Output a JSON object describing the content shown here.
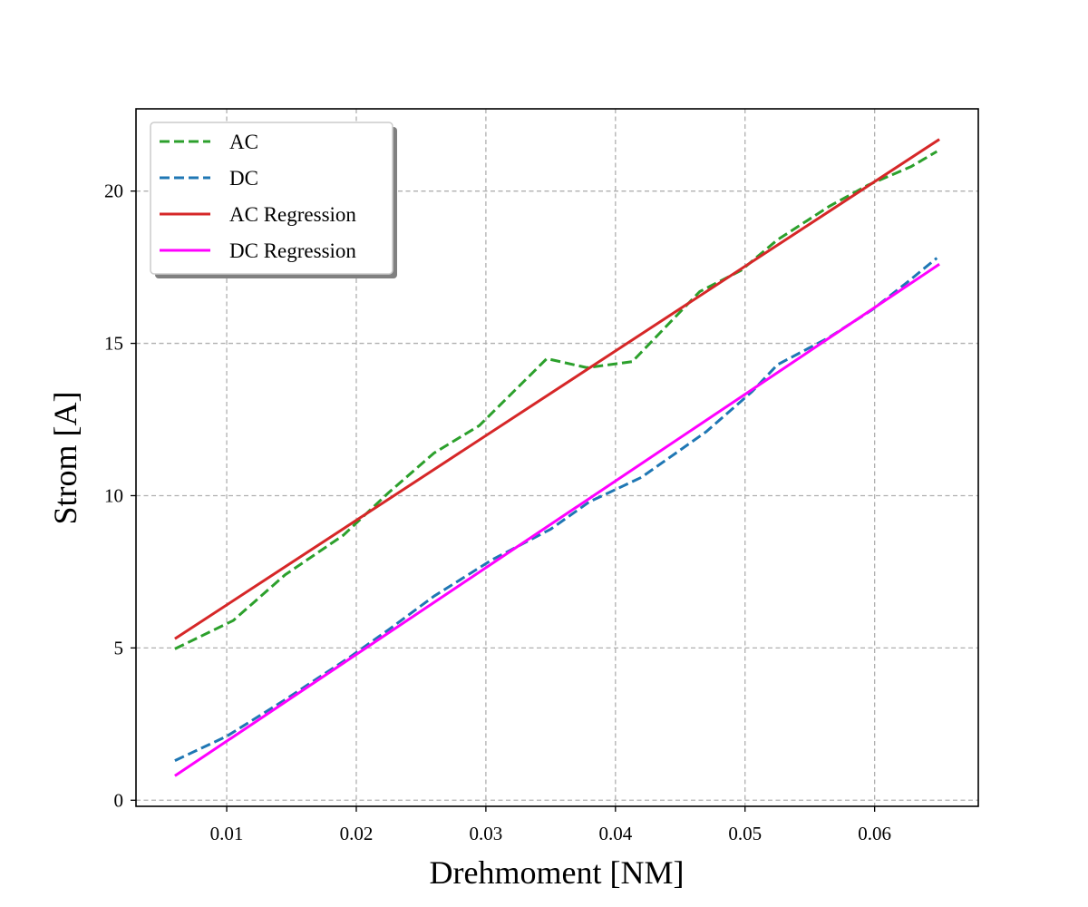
{
  "chart_data": {
    "type": "line",
    "title": "",
    "xlabel": "Drehmoment [NM]",
    "ylabel": "Strom [A]",
    "xlim": [
      0.003,
      0.068
    ],
    "ylim": [
      -0.2,
      22.7
    ],
    "xticks": [
      0.01,
      0.02,
      0.03,
      0.04,
      0.05,
      0.06
    ],
    "xtick_labels": [
      "0.01",
      "0.02",
      "0.03",
      "0.04",
      "0.05",
      "0.06"
    ],
    "yticks": [
      0,
      5,
      10,
      15,
      20
    ],
    "ytick_labels": [
      "0",
      "5",
      "10",
      "15",
      "20"
    ],
    "grid": true,
    "legend_position": "top-left",
    "series": [
      {
        "name": "AC",
        "style": "dashed",
        "color": "#2ca02c",
        "x": [
          0.006,
          0.0105,
          0.0145,
          0.019,
          0.0225,
          0.026,
          0.0295,
          0.0347,
          0.0378,
          0.0413,
          0.0465,
          0.0497,
          0.0525,
          0.0565,
          0.0595,
          0.0628,
          0.0648
        ],
        "y": [
          4.97,
          5.9,
          7.4,
          8.7,
          10.1,
          11.4,
          12.3,
          14.5,
          14.2,
          14.4,
          16.7,
          17.4,
          18.4,
          19.5,
          20.2,
          20.8,
          21.3
        ]
      },
      {
        "name": "DC",
        "style": "dashed",
        "color": "#1f77b4",
        "x": [
          0.006,
          0.01,
          0.0145,
          0.0195,
          0.0225,
          0.026,
          0.0305,
          0.035,
          0.038,
          0.042,
          0.047,
          0.0505,
          0.0525,
          0.0565,
          0.0598,
          0.0625,
          0.0648
        ],
        "y": [
          1.3,
          2.1,
          3.3,
          4.7,
          5.6,
          6.7,
          7.9,
          8.9,
          9.8,
          10.6,
          12.1,
          13.4,
          14.3,
          15.2,
          16.1,
          17.0,
          17.8
        ]
      },
      {
        "name": "AC Regression",
        "style": "solid",
        "color": "#d62728",
        "x": [
          0.006,
          0.065
        ],
        "y": [
          5.3,
          21.7
        ]
      },
      {
        "name": "DC Regression",
        "style": "solid",
        "color": "#ff00ff",
        "x": [
          0.006,
          0.065
        ],
        "y": [
          0.8,
          17.6
        ]
      }
    ]
  }
}
